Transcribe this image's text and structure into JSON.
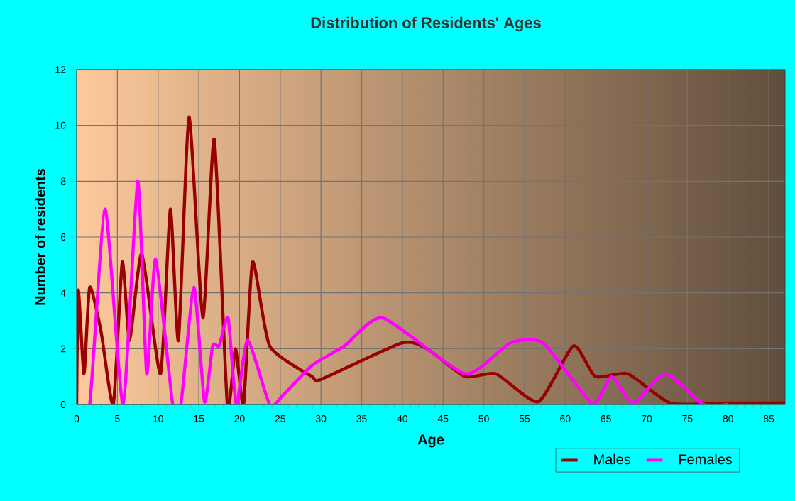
{
  "chart_data": {
    "type": "line",
    "title": "Distribution of Residents' Ages",
    "xlabel": "Age",
    "ylabel": "Number of residents",
    "xlim": [
      0,
      87
    ],
    "ylim": [
      0,
      12
    ],
    "xticks": [
      0,
      5,
      10,
      15,
      20,
      25,
      30,
      35,
      40,
      45,
      50,
      55,
      60,
      65,
      70,
      75,
      80,
      85
    ],
    "yticks": [
      0,
      2,
      4,
      6,
      8,
      10,
      12
    ],
    "grid": true,
    "legend": "bottom right",
    "marker": "none",
    "line_style": "solid",
    "series": [
      {
        "name": "Males",
        "color": "#990000",
        "x": [
          0,
          0.2,
          0.9,
          1.6,
          3,
          4.5,
          5.6,
          6.5,
          8,
          10.3,
          11.5,
          12.5,
          13.8,
          15.5,
          16.9,
          18.5,
          19.5,
          20.5,
          21.6,
          23.7,
          28.9,
          30,
          39.9,
          43,
          47.7,
          51.5,
          56.7,
          61,
          63.7,
          67.7,
          72.9,
          80,
          87
        ],
        "values": [
          0,
          4.1,
          1.1,
          4.2,
          2.6,
          0,
          5.1,
          2.3,
          5.4,
          1.1,
          7.0,
          2.3,
          10.3,
          3.1,
          9.5,
          0,
          2.0,
          0,
          5.1,
          2.1,
          1.0,
          0.9,
          2.2,
          2.0,
          1.0,
          1.1,
          0.1,
          2.1,
          1.0,
          1.1,
          0.05,
          0.05,
          0.05
        ]
      },
      {
        "name": "Females",
        "color": "#ff00ff",
        "x": [
          0,
          1.6,
          3.5,
          5.7,
          7.5,
          8.6,
          9.7,
          11.8,
          12.8,
          14.4,
          15.7,
          16.7,
          17.5,
          18.6,
          19.6,
          21,
          23.7,
          25.4,
          28.9,
          32.9,
          37.6,
          47.7,
          53.2,
          57.3,
          63.3,
          65.7,
          68.3,
          72.3,
          77,
          80
        ],
        "values": [
          0,
          0,
          7.0,
          0,
          8.0,
          1.1,
          5.2,
          0,
          0,
          4.2,
          0.1,
          2.1,
          2.1,
          3.1,
          0,
          2.3,
          0,
          0.35,
          1.4,
          2.1,
          3.1,
          1.1,
          2.2,
          2.2,
          0.05,
          1.0,
          0.05,
          1.1,
          0,
          0
        ]
      }
    ]
  }
}
